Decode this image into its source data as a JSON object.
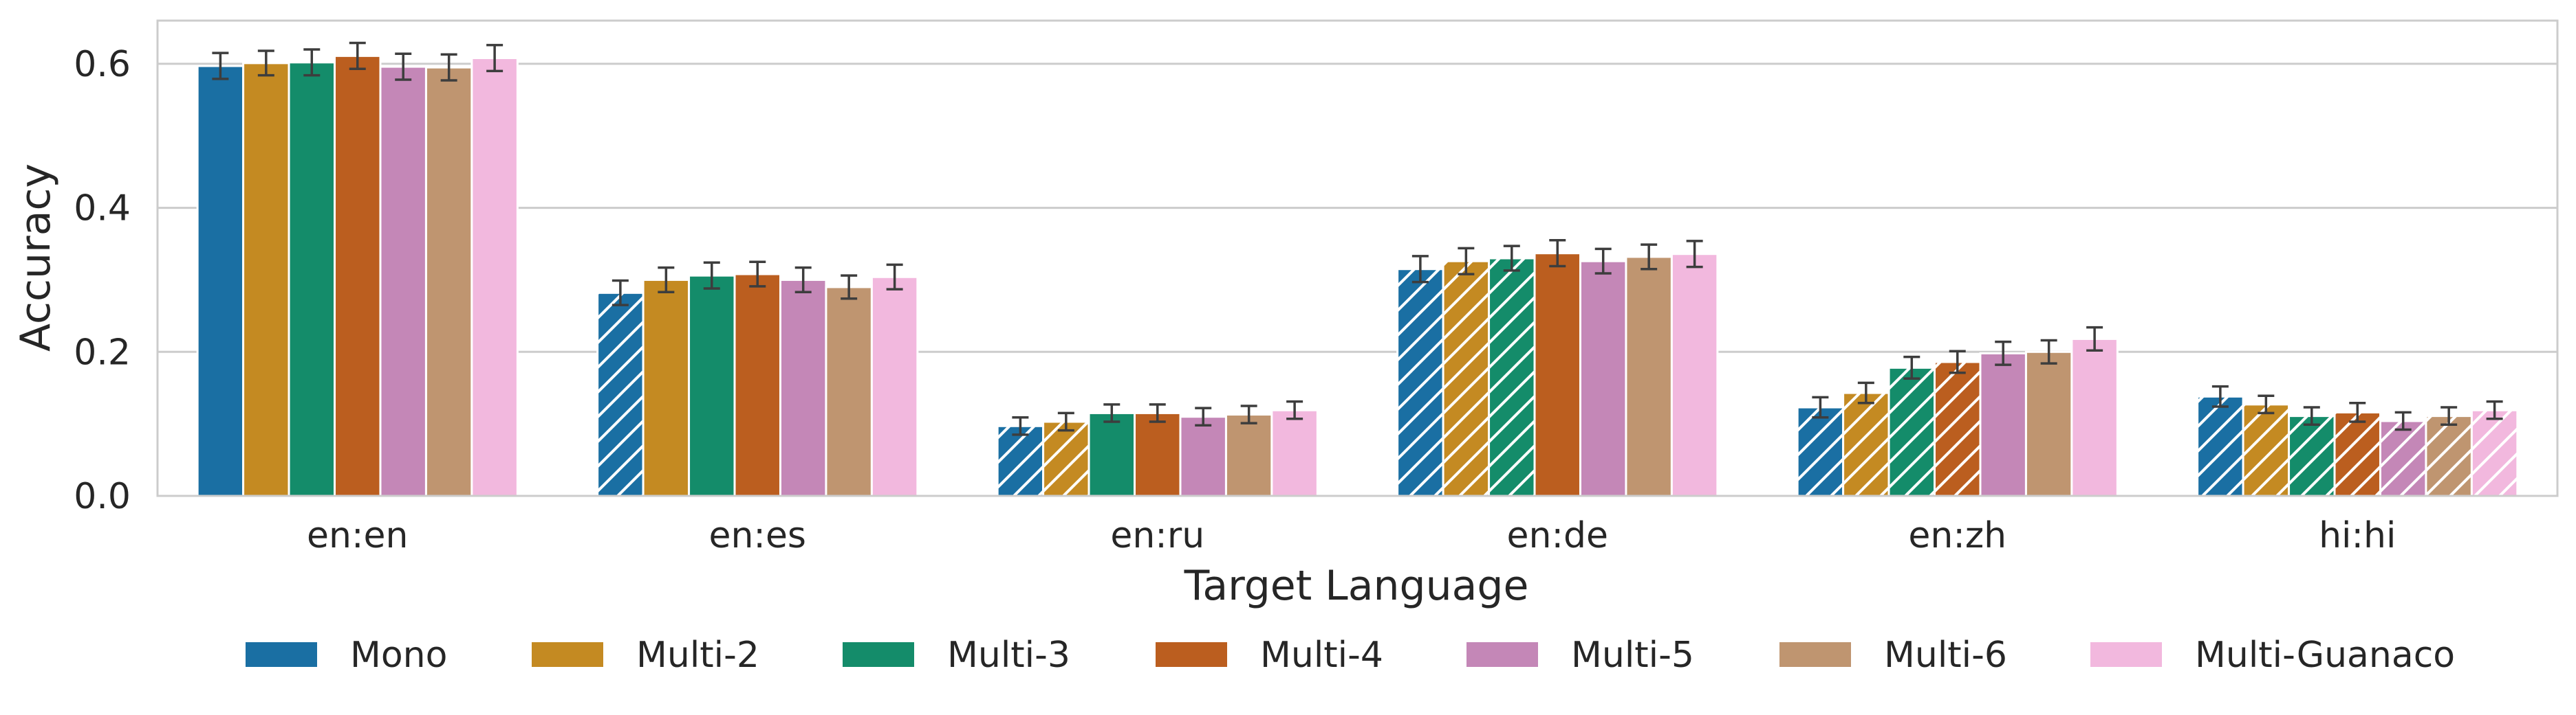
{
  "chart_data": {
    "type": "bar",
    "title": "",
    "xlabel": "Target Language",
    "ylabel": "Accuracy",
    "ylim": [
      0,
      0.66
    ],
    "yticks": [
      "0.0",
      "0.2",
      "0.4",
      "0.6"
    ],
    "grid": "horizontal",
    "legend_position": "bottom",
    "categories": [
      "en:en",
      "en:es",
      "en:ru",
      "en:de",
      "en:zh",
      "hi:hi"
    ],
    "series": [
      {
        "name": "Mono",
        "color": "#1a6fa3",
        "values": [
          0.597,
          0.282,
          0.097,
          0.315,
          0.123,
          0.138
        ],
        "errors": [
          0.018,
          0.017,
          0.012,
          0.018,
          0.014,
          0.014
        ],
        "hatched": [
          false,
          true,
          true,
          true,
          true,
          true
        ]
      },
      {
        "name": "Multi-2",
        "color": "#c48a22",
        "values": [
          0.601,
          0.3,
          0.103,
          0.326,
          0.143,
          0.127
        ],
        "errors": [
          0.017,
          0.017,
          0.012,
          0.018,
          0.014,
          0.012
        ],
        "hatched": [
          false,
          false,
          true,
          true,
          true,
          true
        ]
      },
      {
        "name": "Multi-3",
        "color": "#148c6a",
        "values": [
          0.602,
          0.306,
          0.115,
          0.33,
          0.178,
          0.111
        ],
        "errors": [
          0.018,
          0.018,
          0.012,
          0.017,
          0.015,
          0.012
        ],
        "hatched": [
          false,
          false,
          false,
          true,
          true,
          true
        ]
      },
      {
        "name": "Multi-4",
        "color": "#bb5e1f",
        "values": [
          0.611,
          0.308,
          0.115,
          0.337,
          0.186,
          0.116
        ],
        "errors": [
          0.018,
          0.017,
          0.012,
          0.018,
          0.015,
          0.013
        ],
        "hatched": [
          false,
          false,
          false,
          false,
          true,
          true
        ]
      },
      {
        "name": "Multi-5",
        "color": "#c487b7",
        "values": [
          0.596,
          0.3,
          0.11,
          0.326,
          0.198,
          0.104
        ],
        "errors": [
          0.018,
          0.017,
          0.012,
          0.017,
          0.016,
          0.012
        ],
        "hatched": [
          false,
          false,
          false,
          false,
          false,
          true
        ]
      },
      {
        "name": "Multi-6",
        "color": "#bf9570",
        "values": [
          0.595,
          0.29,
          0.113,
          0.332,
          0.2,
          0.111
        ],
        "errors": [
          0.018,
          0.016,
          0.012,
          0.017,
          0.016,
          0.012
        ],
        "hatched": [
          false,
          false,
          false,
          false,
          false,
          true
        ]
      },
      {
        "name": "Multi-Guanaco",
        "color": "#f2b8de",
        "values": [
          0.608,
          0.304,
          0.119,
          0.336,
          0.218,
          0.119
        ],
        "errors": [
          0.018,
          0.017,
          0.012,
          0.018,
          0.016,
          0.012
        ],
        "hatched": [
          false,
          false,
          false,
          false,
          false,
          true
        ]
      }
    ]
  }
}
